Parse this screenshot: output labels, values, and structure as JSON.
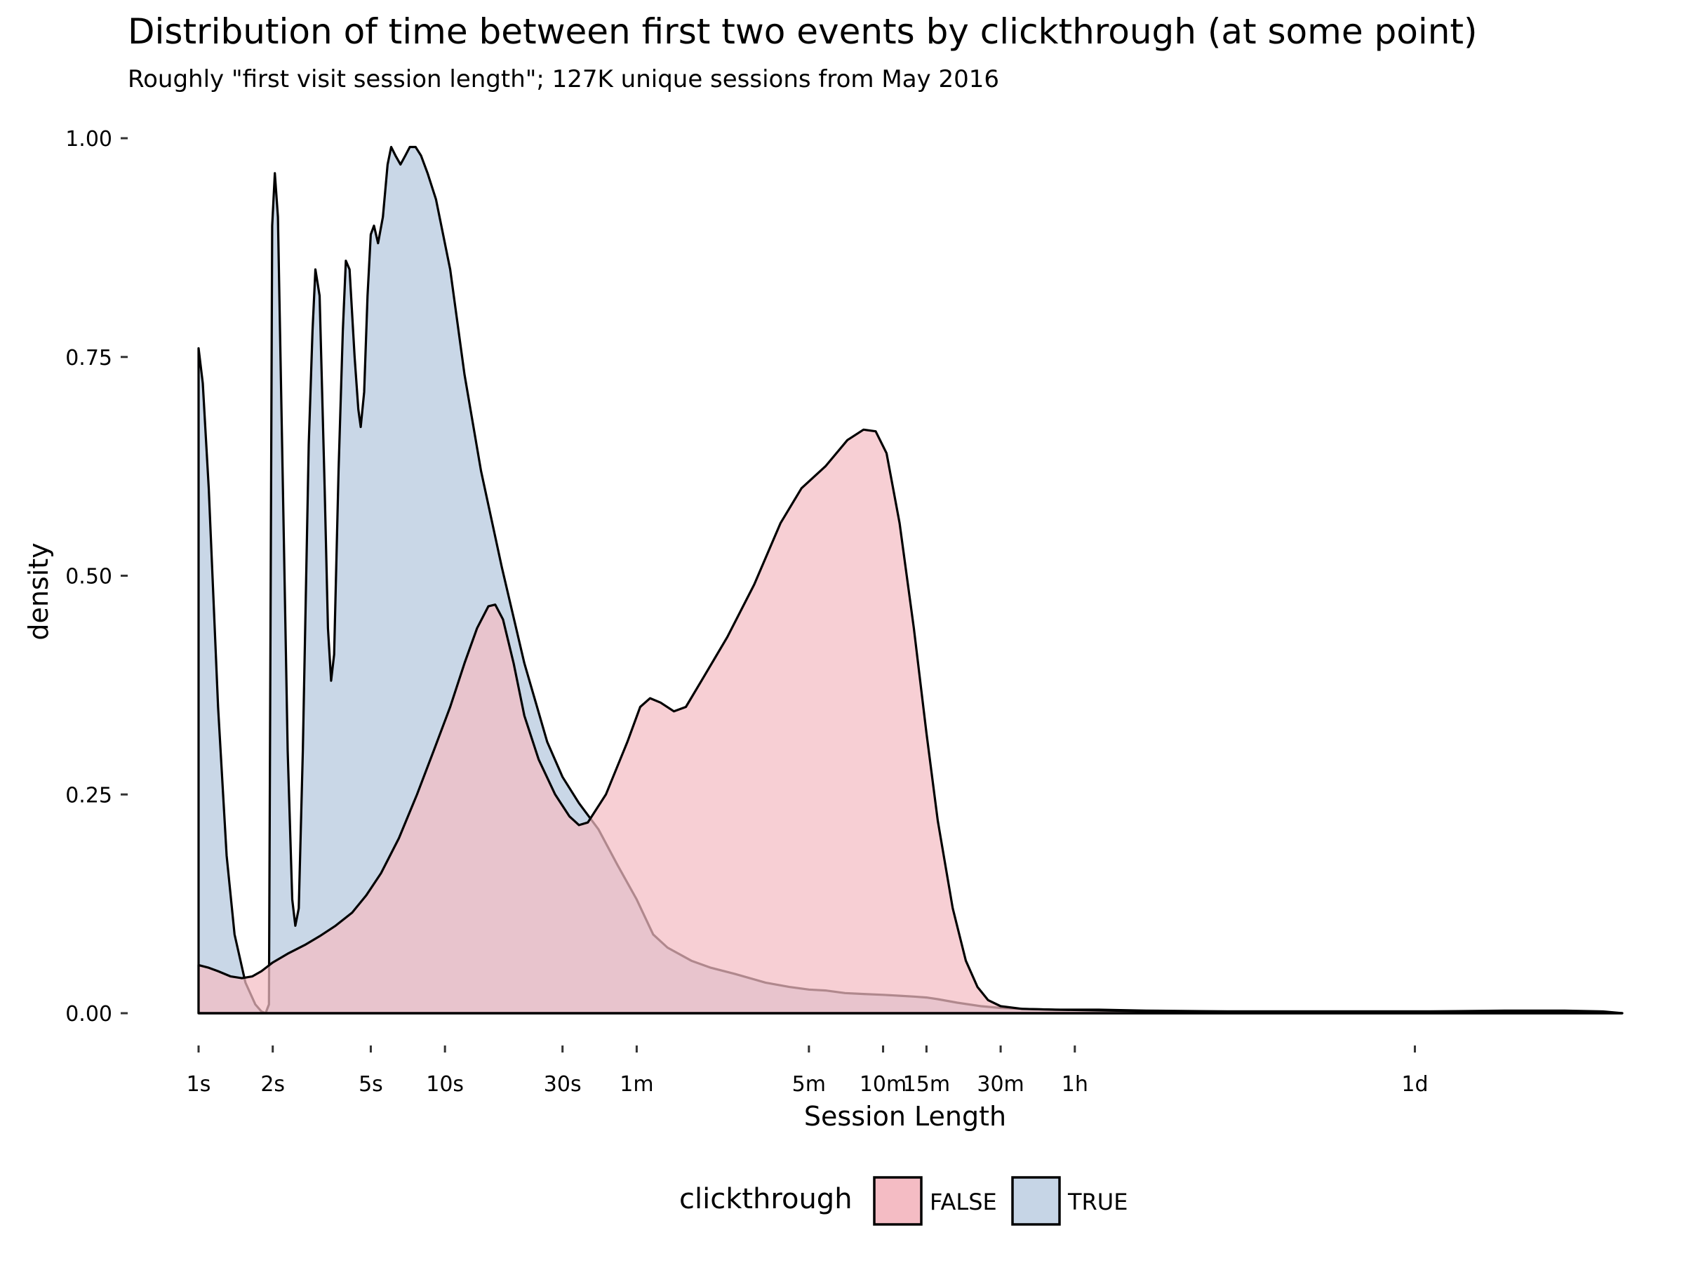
{
  "colors": {
    "FALSE": "#f4bcc4",
    "TRUE": "#c6d5e6",
    "outline": "#000000"
  },
  "chart_data": {
    "type": "area",
    "title": "Distribution of time between first two events by clickthrough (at some point)",
    "subtitle": "Roughly \"first visit session length\"; 127K unique sessions from May 2016",
    "xlabel": "Session Length",
    "ylabel": "density",
    "x_scale": "log10 (seconds)",
    "xlim": [
      1,
      600000
    ],
    "ylim": [
      0,
      1.0
    ],
    "x_ticks": [
      {
        "label": "1s",
        "value": 1
      },
      {
        "label": "2s",
        "value": 2
      },
      {
        "label": "5s",
        "value": 5
      },
      {
        "label": "10s",
        "value": 10
      },
      {
        "label": "30s",
        "value": 30
      },
      {
        "label": "1m",
        "value": 60
      },
      {
        "label": "5m",
        "value": 300
      },
      {
        "label": "10m",
        "value": 600
      },
      {
        "label": "15m",
        "value": 900
      },
      {
        "label": "30m",
        "value": 1800
      },
      {
        "label": "1h",
        "value": 3600
      },
      {
        "label": "1d",
        "value": 86400
      }
    ],
    "y_ticks": [
      {
        "label": "0.00",
        "value": 0
      },
      {
        "label": "0.25",
        "value": 0.25
      },
      {
        "label": "0.50",
        "value": 0.5
      },
      {
        "label": "0.75",
        "value": 0.75
      },
      {
        "label": "1.00",
        "value": 1.0
      }
    ],
    "grid": false,
    "legend": {
      "title": "clickthrough",
      "position": "bottom"
    },
    "series": [
      {
        "name": "TRUE",
        "points": [
          [
            1,
            0.76
          ],
          [
            1.04,
            0.72
          ],
          [
            1.1,
            0.6
          ],
          [
            1.2,
            0.35
          ],
          [
            1.3,
            0.18
          ],
          [
            1.4,
            0.09
          ],
          [
            1.55,
            0.035
          ],
          [
            1.7,
            0.01
          ],
          [
            1.8,
            0.002
          ],
          [
            1.87,
            0.0
          ],
          [
            1.93,
            0.01
          ],
          [
            1.99,
            0.9
          ],
          [
            2.04,
            0.96
          ],
          [
            2.1,
            0.91
          ],
          [
            2.2,
            0.6
          ],
          [
            2.3,
            0.3
          ],
          [
            2.4,
            0.13
          ],
          [
            2.47,
            0.1
          ],
          [
            2.55,
            0.12
          ],
          [
            2.65,
            0.3
          ],
          [
            2.8,
            0.65
          ],
          [
            2.9,
            0.78
          ],
          [
            2.98,
            0.85
          ],
          [
            3.1,
            0.82
          ],
          [
            3.25,
            0.6
          ],
          [
            3.35,
            0.44
          ],
          [
            3.45,
            0.38
          ],
          [
            3.55,
            0.41
          ],
          [
            3.7,
            0.62
          ],
          [
            3.85,
            0.78
          ],
          [
            3.96,
            0.86
          ],
          [
            4.1,
            0.85
          ],
          [
            4.3,
            0.75
          ],
          [
            4.45,
            0.69
          ],
          [
            4.55,
            0.67
          ],
          [
            4.7,
            0.71
          ],
          [
            4.85,
            0.82
          ],
          [
            5.0,
            0.89
          ],
          [
            5.15,
            0.9
          ],
          [
            5.35,
            0.88
          ],
          [
            5.6,
            0.91
          ],
          [
            5.85,
            0.97
          ],
          [
            6.05,
            0.99
          ],
          [
            6.3,
            0.98
          ],
          [
            6.6,
            0.97
          ],
          [
            6.9,
            0.98
          ],
          [
            7.2,
            0.99
          ],
          [
            7.6,
            0.99
          ],
          [
            8.0,
            0.98
          ],
          [
            8.5,
            0.96
          ],
          [
            9.2,
            0.93
          ],
          [
            10.5,
            0.85
          ],
          [
            12,
            0.73
          ],
          [
            14,
            0.62
          ],
          [
            17,
            0.51
          ],
          [
            21,
            0.4
          ],
          [
            26,
            0.31
          ],
          [
            30,
            0.27
          ],
          [
            35,
            0.24
          ],
          [
            42,
            0.21
          ],
          [
            50,
            0.17
          ],
          [
            60,
            0.13
          ],
          [
            70,
            0.09
          ],
          [
            80,
            0.075
          ],
          [
            100,
            0.06
          ],
          [
            120,
            0.052
          ],
          [
            150,
            0.045
          ],
          [
            200,
            0.035
          ],
          [
            250,
            0.03
          ],
          [
            300,
            0.027
          ],
          [
            350,
            0.026
          ],
          [
            420,
            0.023
          ],
          [
            500,
            0.022
          ],
          [
            600,
            0.021
          ],
          [
            700,
            0.02
          ],
          [
            800,
            0.019
          ],
          [
            900,
            0.018
          ],
          [
            1000,
            0.016
          ],
          [
            1200,
            0.012
          ],
          [
            1500,
            0.008
          ],
          [
            1800,
            0.006
          ],
          [
            2200,
            0.005
          ],
          [
            3000,
            0.004
          ],
          [
            4500,
            0.004
          ],
          [
            7000,
            0.003
          ],
          [
            15000,
            0.002
          ],
          [
            30000,
            0.002
          ],
          [
            60000,
            0.002
          ],
          [
            100000,
            0.002
          ],
          [
            200000,
            0.003
          ],
          [
            350000,
            0.003
          ],
          [
            500000,
            0.002
          ],
          [
            600000,
            0.0
          ]
        ]
      },
      {
        "name": "FALSE",
        "points": [
          [
            1,
            0.055
          ],
          [
            1.1,
            0.052
          ],
          [
            1.2,
            0.048
          ],
          [
            1.35,
            0.042
          ],
          [
            1.5,
            0.04
          ],
          [
            1.65,
            0.042
          ],
          [
            1.8,
            0.048
          ],
          [
            2.0,
            0.058
          ],
          [
            2.3,
            0.068
          ],
          [
            2.7,
            0.078
          ],
          [
            3.1,
            0.088
          ],
          [
            3.6,
            0.1
          ],
          [
            4.2,
            0.115
          ],
          [
            4.8,
            0.135
          ],
          [
            5.5,
            0.16
          ],
          [
            6.5,
            0.2
          ],
          [
            7.7,
            0.25
          ],
          [
            9.0,
            0.3
          ],
          [
            10.5,
            0.35
          ],
          [
            12,
            0.4
          ],
          [
            13.5,
            0.44
          ],
          [
            15,
            0.465
          ],
          [
            16,
            0.467
          ],
          [
            17.2,
            0.45
          ],
          [
            19,
            0.4
          ],
          [
            21,
            0.34
          ],
          [
            24,
            0.29
          ],
          [
            28,
            0.25
          ],
          [
            32,
            0.225
          ],
          [
            35,
            0.215
          ],
          [
            38,
            0.218
          ],
          [
            45,
            0.25
          ],
          [
            55,
            0.31
          ],
          [
            62,
            0.35
          ],
          [
            68,
            0.36
          ],
          [
            75,
            0.355
          ],
          [
            85,
            0.345
          ],
          [
            95,
            0.35
          ],
          [
            110,
            0.38
          ],
          [
            140,
            0.43
          ],
          [
            180,
            0.49
          ],
          [
            230,
            0.56
          ],
          [
            280,
            0.6
          ],
          [
            350,
            0.625
          ],
          [
            430,
            0.655
          ],
          [
            500,
            0.667
          ],
          [
            560,
            0.665
          ],
          [
            620,
            0.64
          ],
          [
            700,
            0.56
          ],
          [
            800,
            0.44
          ],
          [
            900,
            0.32
          ],
          [
            1000,
            0.22
          ],
          [
            1150,
            0.12
          ],
          [
            1300,
            0.06
          ],
          [
            1450,
            0.03
          ],
          [
            1600,
            0.015
          ],
          [
            1800,
            0.008
          ],
          [
            2200,
            0.005
          ],
          [
            3000,
            0.004
          ],
          [
            5000,
            0.003
          ],
          [
            10000,
            0.002
          ],
          [
            30000,
            0.002
          ],
          [
            100000,
            0.002
          ],
          [
            300000,
            0.002
          ],
          [
            600000,
            0.0
          ]
        ]
      }
    ]
  }
}
